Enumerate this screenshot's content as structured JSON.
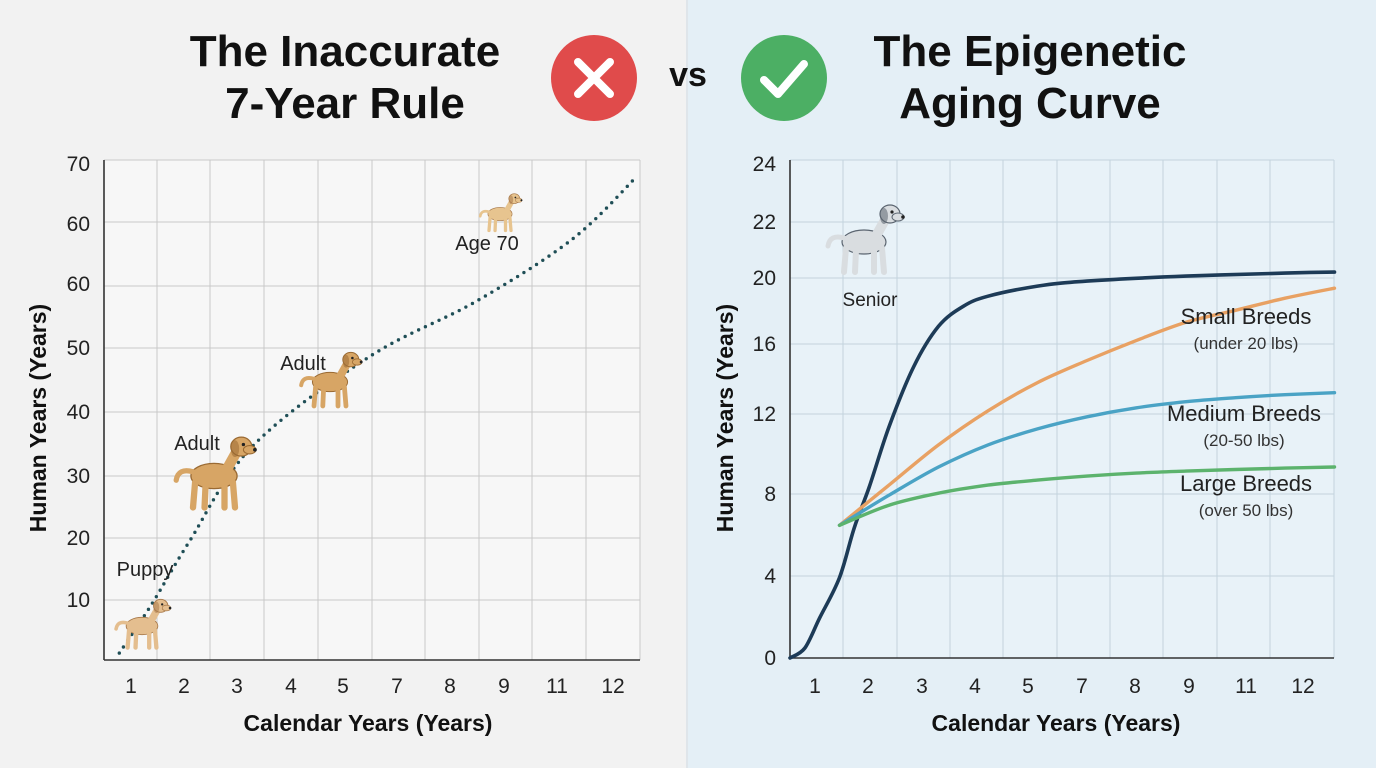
{
  "left_title": {
    "line1": "The Inaccurate",
    "line2": "7-Year Rule"
  },
  "right_title": {
    "line1": "The Epigenetic",
    "line2": "Aging Curve"
  },
  "vs_label": "vs",
  "colors": {
    "wrong": "#e04b4b",
    "right": "#4caf64",
    "rule_line": "#1f4e56",
    "senior_curve": "#1d3b57",
    "small": "#e8a163",
    "medium": "#4aa3c5",
    "large": "#5cb36d",
    "grid": "#c9c9c9",
    "axis": "#333333"
  },
  "chart_data": [
    {
      "type": "line",
      "xlabel": "Calendar Years (Years)",
      "ylabel": "Human Years (Years)",
      "x_ticks": [
        "1",
        "2",
        "3",
        "4",
        "5",
        "7",
        "8",
        "9",
        "11",
        "12"
      ],
      "y_ticks": [
        "10",
        "20",
        "30",
        "40",
        "50",
        "60",
        "60",
        "70"
      ],
      "grid": true,
      "series": [
        {
          "style": "dotted",
          "x": [
            0.8,
            1.4,
            2.1,
            3.3,
            5.5,
            7.5,
            9.3,
            10.5
          ],
          "y": [
            1,
            8,
            17,
            31,
            44,
            52,
            61,
            70
          ]
        }
      ],
      "annotations": [
        {
          "text": "Puppy",
          "x": 1.5,
          "y": 9.5,
          "icon": "puppy-icon"
        },
        {
          "text": "Adult",
          "x": 2.8,
          "y": 25,
          "icon": "adult-dog-icon"
        },
        {
          "text": "Adult",
          "x": 4.6,
          "y": 38,
          "icon": "adult-dog-icon"
        },
        {
          "text": "Age 70",
          "x": 8.7,
          "y": 51,
          "icon": "small-dog-icon"
        }
      ]
    },
    {
      "type": "line",
      "xlabel": "Calendar Years (Years)",
      "ylabel": "Human Years (Years)",
      "x_ticks": [
        "1",
        "2",
        "3",
        "4",
        "5",
        "7",
        "8",
        "9",
        "11",
        "12"
      ],
      "y_ticks": [
        "0",
        "4",
        "8",
        "12",
        "16",
        "20",
        "22",
        "24"
      ],
      "grid": true,
      "series": [
        {
          "name": "Senior",
          "x": [
            0,
            0.3,
            0.6,
            1.0,
            1.3,
            1.6,
            2.0,
            2.5,
            3.0,
            3.5,
            4.0,
            5.0,
            6.0,
            8.0,
            10.0,
            11.0
          ],
          "y": [
            0,
            0.5,
            2,
            4,
            6.5,
            8.5,
            11.5,
            14.5,
            16.5,
            17.5,
            18.0,
            18.5,
            18.75,
            19.0,
            19.15,
            19.2
          ]
        },
        {
          "name": "Small Breeds",
          "sublabel": "(under 20 lbs)",
          "x": [
            1.0,
            2.0,
            3.0,
            4.0,
            5.0,
            6.0,
            7.0,
            8.0,
            9.0,
            10.0,
            11.0
          ],
          "y": [
            6.6,
            8.6,
            10.6,
            12.3,
            13.7,
            14.8,
            15.8,
            16.7,
            17.3,
            17.9,
            18.4
          ]
        },
        {
          "name": "Medium Breeds",
          "sublabel": "(20-50 lbs)",
          "x": [
            1.0,
            2.0,
            3.0,
            4.0,
            5.0,
            6.0,
            7.0,
            8.0,
            9.0,
            10.0,
            11.0
          ],
          "y": [
            6.6,
            8.1,
            9.5,
            10.6,
            11.4,
            12.0,
            12.45,
            12.75,
            12.95,
            13.1,
            13.2
          ]
        },
        {
          "name": "Large Breeds",
          "sublabel": "(over 50 lbs)",
          "x": [
            1.0,
            2.0,
            3.0,
            4.0,
            5.0,
            6.0,
            7.0,
            8.0,
            9.0,
            10.0,
            11.0
          ],
          "y": [
            6.6,
            7.6,
            8.2,
            8.6,
            8.85,
            9.05,
            9.2,
            9.3,
            9.38,
            9.45,
            9.5
          ]
        }
      ],
      "annotations": [
        {
          "text": "Senior",
          "icon": "senior-dog-icon"
        }
      ]
    }
  ]
}
